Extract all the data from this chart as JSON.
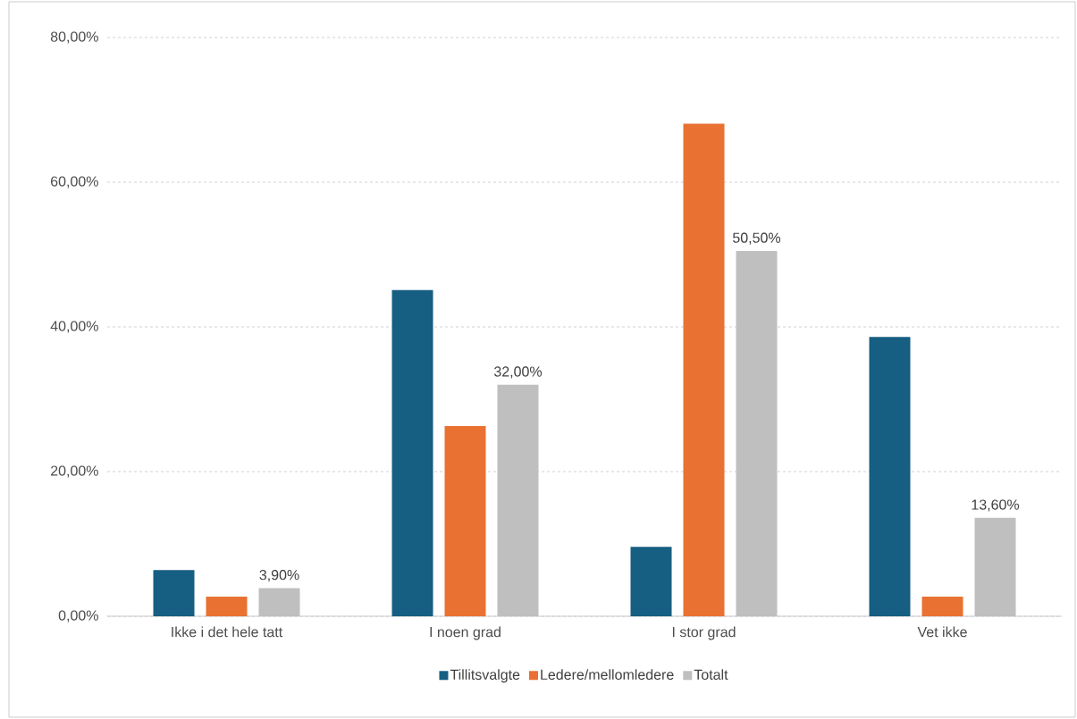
{
  "chart_data": {
    "type": "bar",
    "categories": [
      "Ikke i det hele tatt",
      "I noen grad",
      "I stor grad",
      "Vet ikke"
    ],
    "series": [
      {
        "name": "Tillitsvalgte",
        "color": "#165e82",
        "values": [
          6.4,
          45.1,
          9.6,
          38.6
        ]
      },
      {
        "name": "Ledere/mellomledere",
        "color": "#e97132",
        "values": [
          2.7,
          26.3,
          68.1,
          2.7
        ]
      },
      {
        "name": "Totalt",
        "color": "#bfbfbf",
        "values": [
          3.9,
          32.0,
          50.5,
          13.6
        ],
        "value_labels": [
          "3,90%",
          "32,00%",
          "50,50%",
          "13,60%"
        ]
      }
    ],
    "ylim": [
      0,
      80
    ],
    "yticks": [
      {
        "value": 0,
        "label": "0,00%"
      },
      {
        "value": 20,
        "label": "20,00%"
      },
      {
        "value": 40,
        "label": "40,00%"
      },
      {
        "value": 60,
        "label": "60,00%"
      },
      {
        "value": 80,
        "label": "80,00%"
      }
    ],
    "grid": "y",
    "legend": "bottom"
  }
}
